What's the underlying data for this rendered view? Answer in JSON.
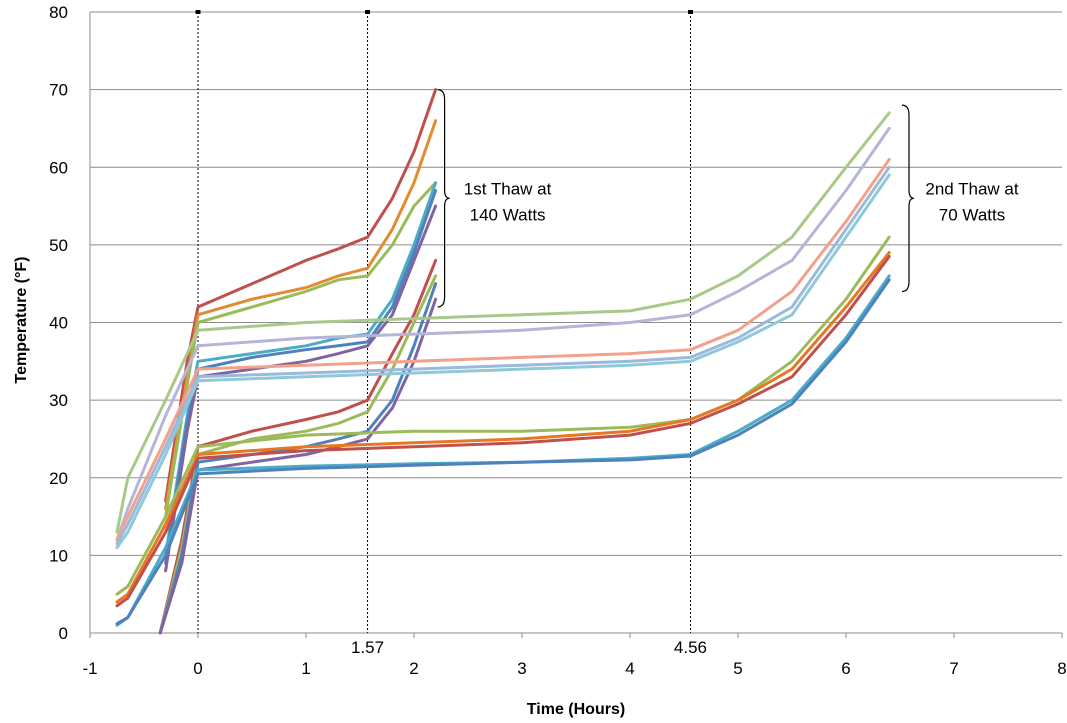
{
  "chart_data": {
    "type": "line",
    "xlabel": "Time (Hours)",
    "ylabel": "Temperature (°F)",
    "xlim": [
      -1,
      8
    ],
    "ylim": [
      0,
      80
    ],
    "x_ticks": [
      "-1",
      "0",
      "1",
      "2",
      "3",
      "4",
      "5",
      "6",
      "7",
      "8"
    ],
    "y_ticks": [
      "0",
      "10",
      "20",
      "30",
      "40",
      "50",
      "60",
      "70",
      "80"
    ],
    "grid": "horizontal",
    "legend": "none",
    "vertical_markers": [
      {
        "x": 0,
        "label": ""
      },
      {
        "x": 1.57,
        "label": "1.57"
      },
      {
        "x": 4.56,
        "label": "4.56"
      }
    ],
    "annotations": [
      {
        "lines": [
          "1st Thaw at",
          "140 Watts"
        ],
        "span": [
          42,
          70
        ],
        "at_x": 2.2
      },
      {
        "lines": [
          "2nd Thaw at",
          "70 Watts"
        ],
        "span": [
          44,
          68
        ],
        "at_x": 6.5
      }
    ],
    "series": [
      {
        "color": "#c0504d",
        "x": [
          -0.3,
          -0.1,
          0,
          0.5,
          1,
          1.3,
          1.57,
          1.8,
          2.0,
          2.2
        ],
        "y": [
          17,
          35,
          42,
          45,
          48,
          49.5,
          51,
          56,
          62,
          70
        ]
      },
      {
        "color": "#e38b31",
        "x": [
          -0.3,
          -0.1,
          0,
          0.5,
          1,
          1.3,
          1.57,
          1.8,
          2.0,
          2.2
        ],
        "y": [
          16,
          33,
          41,
          43,
          44.5,
          46,
          47,
          52,
          58,
          66
        ]
      },
      {
        "color": "#9bbb59",
        "x": [
          -0.3,
          -0.1,
          0,
          0.5,
          1,
          1.3,
          1.57,
          1.8,
          2.0,
          2.2
        ],
        "y": [
          15,
          32,
          40,
          42,
          44,
          45.5,
          46,
          50,
          55,
          58
        ]
      },
      {
        "color": "#4aacc6",
        "x": [
          -0.3,
          -0.1,
          0,
          0.5,
          1,
          1.3,
          1.57,
          1.8,
          2.0,
          2.2
        ],
        "y": [
          10,
          28,
          35,
          36,
          37,
          38,
          38.5,
          43,
          50,
          58
        ]
      },
      {
        "color": "#4f81bd",
        "x": [
          -0.3,
          -0.1,
          0,
          0.5,
          1,
          1.3,
          1.57,
          1.8,
          2.0,
          2.2
        ],
        "y": [
          9,
          27,
          34,
          35.5,
          36.5,
          37,
          37.5,
          42,
          49,
          57
        ]
      },
      {
        "color": "#8064a2",
        "x": [
          -0.3,
          -0.1,
          0,
          0.5,
          1,
          1.3,
          1.57,
          1.8,
          2.0,
          2.2
        ],
        "y": [
          8,
          26,
          33,
          34,
          35,
          36,
          37,
          41,
          48,
          55
        ]
      },
      {
        "color": "#c0504d",
        "x": [
          -0.35,
          -0.15,
          0,
          0.5,
          1,
          1.3,
          1.57,
          1.8,
          2.0,
          2.2
        ],
        "y": [
          0,
          12,
          24,
          26,
          27.5,
          28.5,
          30,
          36,
          41,
          48
        ]
      },
      {
        "color": "#9bbb59",
        "x": [
          -0.35,
          -0.15,
          0,
          0.5,
          1,
          1.3,
          1.57,
          1.8,
          2.0,
          2.2
        ],
        "y": [
          0,
          11,
          23,
          25,
          26,
          27,
          28.5,
          34,
          40,
          46
        ]
      },
      {
        "color": "#4f81bd",
        "x": [
          -0.35,
          -0.15,
          0,
          0.5,
          1,
          1.3,
          1.57,
          1.8,
          2.0,
          2.2
        ],
        "y": [
          0,
          10,
          22,
          23,
          24,
          25,
          26,
          30,
          37,
          45
        ]
      },
      {
        "color": "#8064a2",
        "x": [
          -0.35,
          -0.15,
          0,
          0.5,
          1,
          1.3,
          1.57,
          1.8,
          2.0,
          2.2
        ],
        "y": [
          0,
          9,
          21,
          22,
          23,
          24,
          25,
          29,
          35,
          43
        ]
      },
      {
        "color": "#a9c98a",
        "x": [
          -0.75,
          -0.65,
          -0.3,
          0,
          1,
          2,
          3,
          4,
          4.56,
          5,
          5.5,
          6,
          6.4
        ],
        "y": [
          13,
          20,
          30,
          39,
          40,
          40.5,
          41,
          41.5,
          43,
          46,
          51,
          60,
          67
        ]
      },
      {
        "color": "#b8b4d8",
        "x": [
          -0.75,
          -0.65,
          -0.3,
          0,
          1,
          2,
          3,
          4,
          4.56,
          5,
          5.5,
          6,
          6.4
        ],
        "y": [
          12,
          16,
          28,
          37,
          38,
          38.5,
          39,
          40,
          41,
          44,
          48,
          57,
          65
        ]
      },
      {
        "color": "#f2a28b",
        "x": [
          -0.75,
          -0.65,
          -0.3,
          0,
          1,
          2,
          3,
          4,
          4.56,
          5,
          5.5,
          6,
          6.4
        ],
        "y": [
          12,
          15,
          25,
          34,
          34.5,
          35,
          35.5,
          36,
          36.5,
          39,
          44,
          53,
          61
        ]
      },
      {
        "color": "#9bb8dd",
        "x": [
          -0.75,
          -0.65,
          -0.3,
          0,
          1,
          2,
          3,
          4,
          4.56,
          5,
          5.5,
          6,
          6.4
        ],
        "y": [
          11.5,
          14,
          24,
          33,
          33.5,
          34,
          34.5,
          35,
          35.5,
          38,
          42,
          52,
          60
        ]
      },
      {
        "color": "#8ec9d9",
        "x": [
          -0.75,
          -0.65,
          -0.3,
          0,
          1,
          2,
          3,
          4,
          4.56,
          5,
          5.5,
          6,
          6.4
        ],
        "y": [
          11,
          13,
          23,
          32.5,
          33,
          33.5,
          34,
          34.5,
          35,
          37.5,
          41,
          51,
          59
        ]
      },
      {
        "color": "#9bbb59",
        "x": [
          -0.75,
          -0.65,
          -0.3,
          0,
          1,
          2,
          3,
          4,
          4.56,
          5,
          5.5,
          6,
          6.4
        ],
        "y": [
          5,
          6,
          15,
          24,
          25.5,
          26,
          26,
          26.5,
          27.5,
          30,
          35,
          43,
          51
        ]
      },
      {
        "color": "#e87722",
        "x": [
          -0.75,
          -0.65,
          -0.3,
          0,
          1,
          2,
          3,
          4,
          4.56,
          5,
          5.5,
          6,
          6.4
        ],
        "y": [
          4,
          5,
          14,
          23,
          24,
          24.5,
          25,
          26,
          27.5,
          30,
          34,
          42,
          49
        ]
      },
      {
        "color": "#c0504d",
        "x": [
          -0.75,
          -0.65,
          -0.3,
          0,
          1,
          2,
          3,
          4,
          4.56,
          5,
          5.5,
          6,
          6.4
        ],
        "y": [
          3.5,
          4.5,
          13,
          22.5,
          23.5,
          24,
          24.5,
          25.5,
          27,
          29.5,
          33,
          41,
          48.5
        ]
      },
      {
        "color": "#4aacc6",
        "x": [
          -0.75,
          -0.65,
          -0.3,
          0,
          1,
          2,
          3,
          4,
          4.56,
          5,
          5.5,
          6,
          6.4
        ],
        "y": [
          1,
          2,
          11,
          21,
          21.5,
          21.8,
          22,
          22.5,
          23,
          26,
          30,
          38,
          46
        ]
      },
      {
        "color": "#4f81bd",
        "x": [
          -0.75,
          -0.65,
          -0.3,
          0,
          1,
          2,
          3,
          4,
          4.56,
          5,
          5.5,
          6,
          6.4
        ],
        "y": [
          1.2,
          2,
          10,
          20.5,
          21.2,
          21.6,
          22,
          22.3,
          22.8,
          25.5,
          29.5,
          37.5,
          45.5
        ]
      }
    ]
  }
}
